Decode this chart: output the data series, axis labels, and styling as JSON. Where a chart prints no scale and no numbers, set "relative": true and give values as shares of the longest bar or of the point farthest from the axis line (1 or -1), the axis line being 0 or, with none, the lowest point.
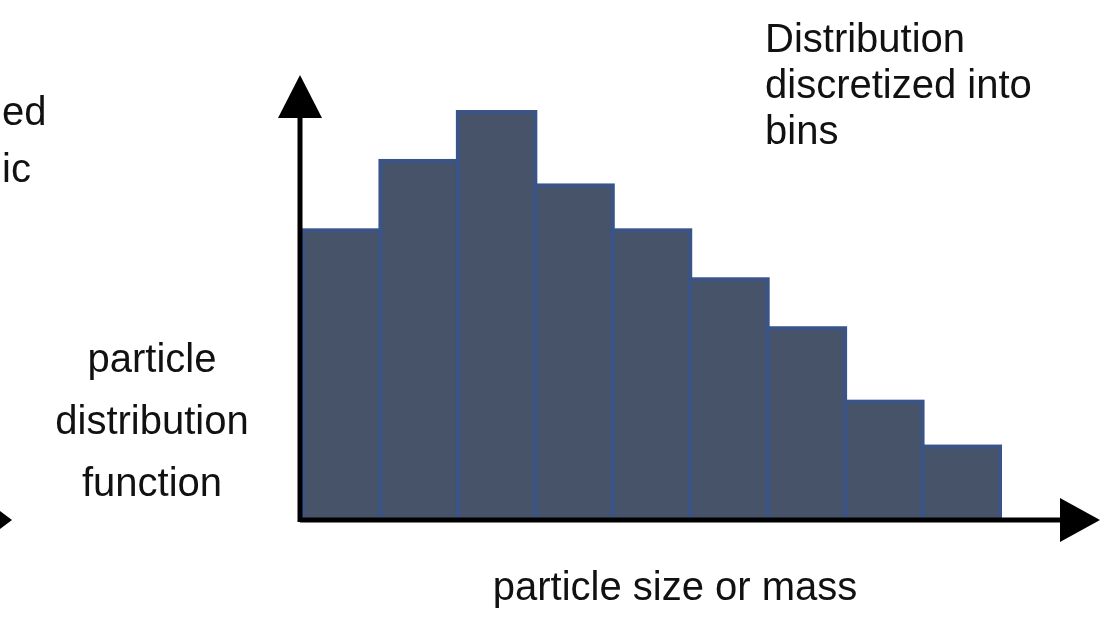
{
  "chart_data": {
    "type": "bar",
    "title": "Distribution discretized into bins",
    "xlabel": "particle size or mass",
    "ylabel": "particle distribution function",
    "relative": true,
    "categories": [
      null,
      null,
      null,
      null,
      null,
      null,
      null,
      null,
      null
    ],
    "values": [
      0.71,
      0.88,
      1,
      0.82,
      0.71,
      0.59,
      0.47,
      0.29,
      0.18
    ],
    "color": "#465369",
    "annotations": [
      "ed",
      "ic"
    ]
  }
}
